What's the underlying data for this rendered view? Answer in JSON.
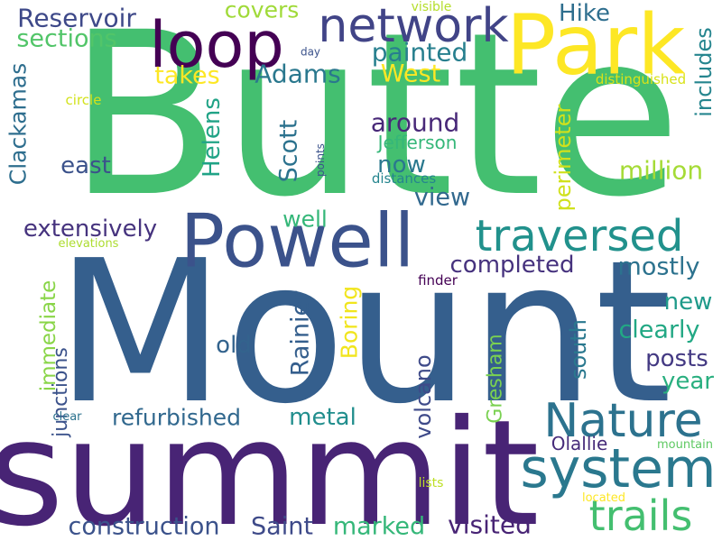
{
  "words": [
    {
      "text": "Butte",
      "color": "#44bf70"
    },
    {
      "text": "Mount",
      "color": "#355f8d"
    },
    {
      "text": "summit",
      "color": "#482475"
    },
    {
      "text": "Park",
      "color": "#fde725"
    },
    {
      "text": "Powell",
      "color": "#3b528b"
    },
    {
      "text": "loop",
      "color": "#440154"
    },
    {
      "text": "network",
      "color": "#414487"
    },
    {
      "text": "system",
      "color": "#2a788e"
    },
    {
      "text": "traversed",
      "color": "#21918c"
    },
    {
      "text": "Nature",
      "color": "#2c728e"
    },
    {
      "text": "trails",
      "color": "#44bf70"
    },
    {
      "text": "Reservoir",
      "color": "#3e4989"
    },
    {
      "text": "sections",
      "color": "#52c569"
    },
    {
      "text": "covers",
      "color": "#a0da39"
    },
    {
      "text": "visible",
      "color": "#b5de2b"
    },
    {
      "text": "Hike",
      "color": "#2e6e8e"
    },
    {
      "text": "painted",
      "color": "#277f8e"
    },
    {
      "text": "West",
      "color": "#fde725"
    },
    {
      "text": "Adams",
      "color": "#2a788e"
    },
    {
      "text": "takes",
      "color": "#fde725"
    },
    {
      "text": "day",
      "color": "#3b528b"
    },
    {
      "text": "distinguished",
      "color": "#d8e219"
    },
    {
      "text": "Clackamas",
      "color": "#2e6e8e"
    },
    {
      "text": "includes",
      "color": "#25858e"
    },
    {
      "text": "around",
      "color": "#482878"
    },
    {
      "text": "circle",
      "color": "#d2e21b"
    },
    {
      "text": "Helens",
      "color": "#20a386"
    },
    {
      "text": "Scott",
      "color": "#2c728e"
    },
    {
      "text": "Jefferson",
      "color": "#35b779"
    },
    {
      "text": "perimeter",
      "color": "#d0e11c"
    },
    {
      "text": "east",
      "color": "#3b528b"
    },
    {
      "text": "now",
      "color": "#2a788e"
    },
    {
      "text": "points",
      "color": "#3b528b"
    },
    {
      "text": "distances",
      "color": "#25858e"
    },
    {
      "text": "million",
      "color": "#a5db36"
    },
    {
      "text": "view",
      "color": "#31688e"
    },
    {
      "text": "extensively",
      "color": "#46337e"
    },
    {
      "text": "well",
      "color": "#35b779"
    },
    {
      "text": "elevations",
      "color": "#addc30"
    },
    {
      "text": "completed",
      "color": "#46327e"
    },
    {
      "text": "mostly",
      "color": "#2c728e"
    },
    {
      "text": "finder",
      "color": "#440154"
    },
    {
      "text": "junctions",
      "color": "#3b528b"
    },
    {
      "text": "immediate",
      "color": "#89d548"
    },
    {
      "text": "Rainier",
      "color": "#355f8d"
    },
    {
      "text": "Boring",
      "color": "#f1e51d"
    },
    {
      "text": "new",
      "color": "#1f9a8a"
    },
    {
      "text": "south",
      "color": "#2a788e"
    },
    {
      "text": "old",
      "color": "#33638d"
    },
    {
      "text": "clearly",
      "color": "#22a884"
    },
    {
      "text": "posts",
      "color": "#443a83"
    },
    {
      "text": "year",
      "color": "#29af7f"
    },
    {
      "text": "volcano",
      "color": "#3e4a89"
    },
    {
      "text": "Gresham",
      "color": "#7ad151"
    },
    {
      "text": "refurbished",
      "color": "#31688e"
    },
    {
      "text": "metal",
      "color": "#218e8d"
    },
    {
      "text": "clear",
      "color": "#2c728e"
    },
    {
      "text": "Olallie",
      "color": "#472c7a"
    },
    {
      "text": "mountain",
      "color": "#5ec962"
    },
    {
      "text": "lists",
      "color": "#bddf26"
    },
    {
      "text": "located",
      "color": "#fde725"
    },
    {
      "text": "construction",
      "color": "#3b528b"
    },
    {
      "text": "Saint",
      "color": "#3e4a89"
    },
    {
      "text": "marked",
      "color": "#35b779"
    },
    {
      "text": "visited",
      "color": "#482475"
    }
  ]
}
